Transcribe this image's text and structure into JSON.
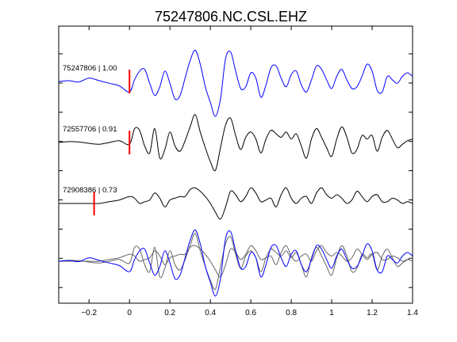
{
  "chart_data": {
    "type": "line",
    "title": "75247806.NC.CSL.EHZ",
    "xlabel": "",
    "ylabel": "",
    "xlim": [
      -0.35,
      1.4
    ],
    "x_ticks": [
      -0.2,
      0,
      0.2,
      0.4,
      0.6,
      0.8,
      1,
      1.2,
      1.4
    ],
    "x_tick_labels": [
      "−0.2",
      "0",
      "0.2",
      "0.4",
      "0.6",
      "0.8",
      "1",
      "1.2",
      "1.4"
    ],
    "y_tick_count": 9,
    "grid": false,
    "x": [
      -0.35,
      -0.3,
      -0.25,
      -0.2,
      -0.15,
      -0.1,
      -0.05,
      0,
      0.025,
      0.05,
      0.075,
      0.1,
      0.125,
      0.15,
      0.175,
      0.2,
      0.225,
      0.25,
      0.275,
      0.3,
      0.325,
      0.35,
      0.375,
      0.4,
      0.425,
      0.45,
      0.475,
      0.5,
      0.525,
      0.55,
      0.575,
      0.6,
      0.625,
      0.65,
      0.675,
      0.7,
      0.725,
      0.75,
      0.775,
      0.8,
      0.825,
      0.85,
      0.875,
      0.9,
      0.925,
      0.95,
      0.975,
      1,
      1.025,
      1.05,
      1.075,
      1.1,
      1.125,
      1.15,
      1.175,
      1.2,
      1.225,
      1.25,
      1.275,
      1.3,
      1.325,
      1.35,
      1.375,
      1.4
    ],
    "traces": [
      {
        "label": "75247806 | 1.00",
        "color": "#0000ff",
        "pick_x": 0.0,
        "values": [
          0.0,
          0.05,
          -0.02,
          0.2,
          0.05,
          -0.1,
          -0.25,
          -0.6,
          0.1,
          0.6,
          0.7,
          -0.1,
          -0.8,
          -0.3,
          0.6,
          -0.1,
          -1.0,
          -0.8,
          0.2,
          1.2,
          1.8,
          1.0,
          -0.3,
          -1.2,
          -2.0,
          -1.0,
          1.3,
          1.7,
          0.6,
          -0.4,
          -0.3,
          0.5,
          0.2,
          -0.9,
          -0.2,
          0.8,
          0.9,
          0.2,
          -0.3,
          0.4,
          0.6,
          -0.2,
          -0.6,
          0.1,
          0.9,
          0.7,
          0.1,
          -0.4,
          0.3,
          0.7,
          0.1,
          -0.4,
          -0.3,
          0.3,
          1.0,
          0.6,
          -0.5,
          -0.6,
          0.3,
          0.1,
          -0.1,
          0.3,
          0.5,
          0.3
        ]
      },
      {
        "label": "72557706 | 0.91",
        "color": "#000000",
        "pick_x": 0.0,
        "values": [
          0.0,
          0.05,
          0.03,
          -0.05,
          -0.1,
          0.0,
          0.1,
          -0.1,
          0.8,
          0.7,
          -0.2,
          -0.6,
          0.8,
          -0.9,
          -0.4,
          0.6,
          -0.2,
          -0.5,
          0.1,
          0.9,
          1.6,
          0.6,
          -0.3,
          -1.1,
          -1.6,
          -0.3,
          1.0,
          1.4,
          0.4,
          -0.4,
          0.3,
          0.6,
          0.2,
          -0.6,
          0.2,
          0.7,
          0.5,
          0.3,
          0.6,
          0.2,
          0.5,
          -0.2,
          -0.9,
          0.2,
          0.8,
          0.3,
          -0.3,
          -0.8,
          0.2,
          0.9,
          0.3,
          -0.6,
          -0.4,
          0.4,
          0.2,
          0.4,
          -0.5,
          0.3,
          0.7,
          0.2,
          -0.3,
          -0.1,
          0.1,
          0.2
        ]
      },
      {
        "label": "72908386 | 0.73",
        "color": "#000000",
        "pick_x": -0.175,
        "values": [
          0.0,
          0.0,
          0.0,
          0.0,
          0.0,
          0.1,
          0.2,
          0.4,
          0.3,
          0.0,
          0.1,
          0.2,
          0.6,
          0.3,
          -0.2,
          0.2,
          0.3,
          0.4,
          0.4,
          0.8,
          0.9,
          0.7,
          0.4,
          0.0,
          -0.5,
          -0.9,
          -0.2,
          0.7,
          0.5,
          0.1,
          0.4,
          0.9,
          0.6,
          0.1,
          0.2,
          0.3,
          -0.2,
          0.5,
          0.9,
          0.3,
          0.0,
          0.3,
          0.4,
          0.0,
          0.6,
          0.9,
          0.5,
          0.3,
          0.5,
          0.3,
          0.0,
          0.2,
          0.7,
          0.4,
          0.1,
          0.4,
          0.5,
          0.1,
          0.1,
          0.3,
          0.2,
          0.0,
          0.1,
          0.0
        ]
      }
    ]
  }
}
